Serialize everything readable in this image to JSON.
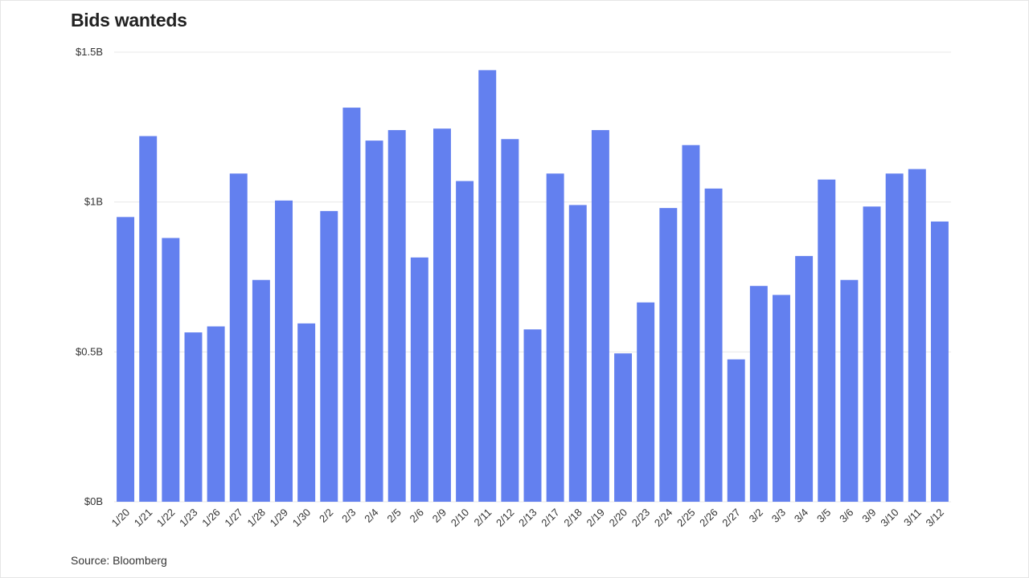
{
  "title": "Bids wanteds",
  "source": "Source: Bloomberg",
  "chart_data": {
    "type": "bar",
    "title": "Bids wanteds",
    "xlabel": "",
    "ylabel": "",
    "ylim": [
      0,
      1.5
    ],
    "yticks": [
      {
        "value": 0,
        "label": "$0B"
      },
      {
        "value": 0.5,
        "label": "$0.5B"
      },
      {
        "value": 1.0,
        "label": "$1B"
      },
      {
        "value": 1.5,
        "label": "$1.5B"
      }
    ],
    "grid": true,
    "bar_color": "#6380ef",
    "grid_color": "#e8e8e8",
    "categories": [
      "1/20",
      "1/21",
      "1/22",
      "1/23",
      "1/26",
      "1/27",
      "1/28",
      "1/29",
      "1/30",
      "2/2",
      "2/3",
      "2/4",
      "2/5",
      "2/6",
      "2/9",
      "2/10",
      "2/11",
      "2/12",
      "2/13",
      "2/17",
      "2/18",
      "2/19",
      "2/20",
      "2/23",
      "2/24",
      "2/25",
      "2/26",
      "2/27",
      "3/2",
      "3/3",
      "3/4",
      "3/5",
      "3/6",
      "3/9",
      "3/10",
      "3/11",
      "3/12"
    ],
    "values": [
      0.95,
      1.22,
      0.88,
      0.565,
      0.585,
      1.095,
      0.74,
      1.005,
      0.595,
      0.97,
      1.315,
      1.205,
      1.24,
      0.815,
      1.245,
      1.07,
      1.44,
      1.21,
      0.575,
      1.095,
      0.99,
      1.24,
      0.495,
      0.665,
      0.98,
      1.19,
      1.045,
      0.475,
      0.72,
      0.69,
      0.82,
      1.075,
      0.74,
      0.985,
      1.095,
      1.11,
      0.935
    ],
    "unit": "B"
  }
}
